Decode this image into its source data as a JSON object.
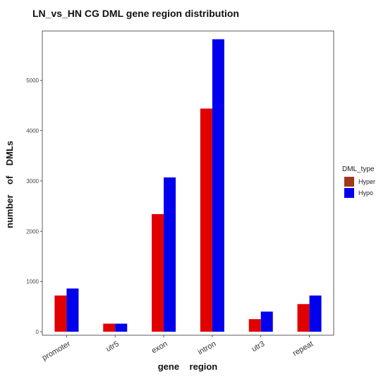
{
  "chart_data": {
    "type": "bar",
    "title": "LN_vs_HN  CG  DML  gene region  distribution",
    "xlabel": "gene    region",
    "ylabel": "number    of    DMLs",
    "categories": [
      "promoter",
      "utr5",
      "exon",
      "intron",
      "utr3",
      "repeat"
    ],
    "series": [
      {
        "name": "Hyper",
        "values": [
          720,
          160,
          2340,
          4440,
          250,
          550
        ]
      },
      {
        "name": "Hypo",
        "values": [
          860,
          160,
          3070,
          5820,
          400,
          720
        ]
      }
    ],
    "ylim": [
      0,
      5900
    ],
    "yticks": [
      0,
      1000,
      2000,
      3000,
      4000,
      5000
    ],
    "legend": {
      "title": "DML_type",
      "position": "right"
    },
    "grid": false,
    "colors": {
      "Hyper": "#e00000",
      "Hypo": "#0000ee",
      "Hyper_key": "#a0391a"
    }
  }
}
